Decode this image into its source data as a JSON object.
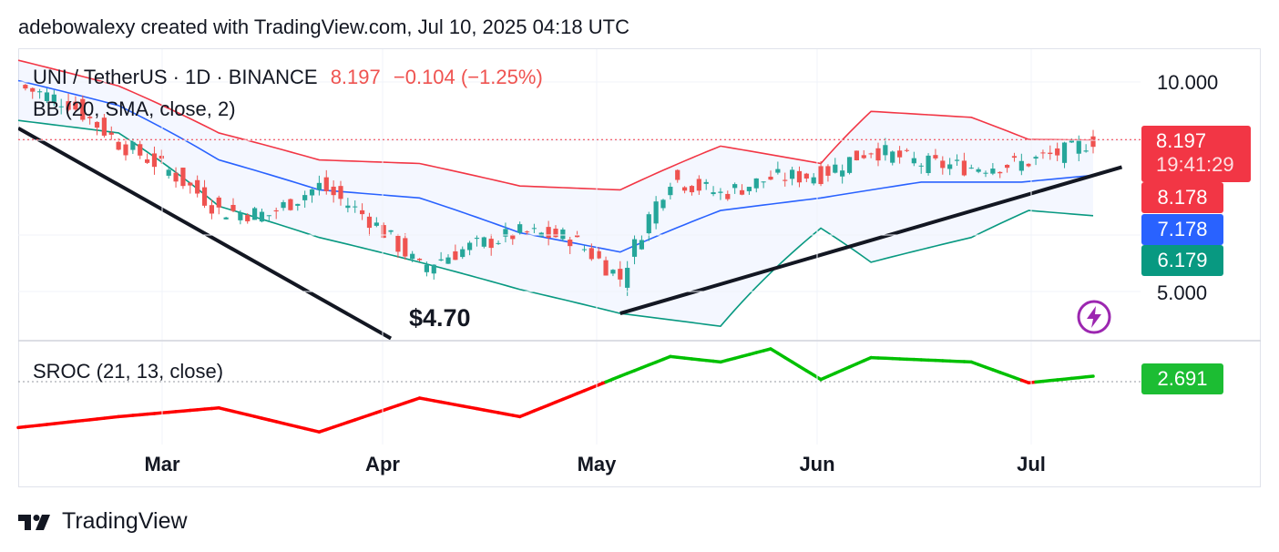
{
  "header": {
    "caption": "adebowalexy created with TradingView.com, Jul 10, 2025 04:18 UTC"
  },
  "legend": {
    "symbol": "UNI / TetherUS · 1D · BINANCE",
    "last": "8.197",
    "change": "−0.104 (−1.25%)",
    "bb_label": "BB (20, SMA, close, 2)",
    "sroc_label": "SROC (21, 13, close)"
  },
  "price_axis": {
    "ticks": [
      {
        "label": "10.000",
        "value": 10.0
      },
      {
        "label": "5.000",
        "value": 5.0
      }
    ]
  },
  "badges": {
    "last_price": "8.197",
    "countdown": "19:41:29",
    "bb_upper": "8.178",
    "bb_basis": "7.178",
    "bb_lower": "6.179",
    "sroc": "2.691"
  },
  "annotation": {
    "low_price": "$4.70"
  },
  "months": [
    "Mar",
    "Apr",
    "May",
    "Jun",
    "Jul"
  ],
  "footer": {
    "brand": "TradingView"
  },
  "colors": {
    "up": "#26a69a",
    "down": "#ef5350",
    "basis": "#2962ff",
    "upper": "#f23645",
    "lower": "#089981",
    "sroc_up": "#00c000",
    "sroc_down": "#ff0000",
    "badge_red": "#f23645",
    "badge_blue": "#2962ff",
    "badge_green": "#089981",
    "badge_sroc": "#1cbd33"
  },
  "chart_data": {
    "type": "line",
    "instrument": "UNI / TetherUS",
    "interval": "1D",
    "exchange": "BINANCE",
    "x_range": [
      "2025-02-10",
      "2025-07-10"
    ],
    "y_scale": "log",
    "ylim": [
      3.9,
      11.5
    ],
    "price_close": [
      [
        "2025-02-10",
        10.0
      ],
      [
        "2025-02-17",
        9.4
      ],
      [
        "2025-02-24",
        8.1
      ],
      [
        "2025-03-03",
        7.3
      ],
      [
        "2025-03-10",
        6.3
      ],
      [
        "2025-03-17",
        6.2
      ],
      [
        "2025-03-24",
        6.9
      ],
      [
        "2025-03-31",
        6.1
      ],
      [
        "2025-04-07",
        5.1
      ],
      [
        "2025-04-14",
        5.5
      ],
      [
        "2025-04-21",
        5.8
      ],
      [
        "2025-04-28",
        5.7
      ],
      [
        "2025-05-05",
        4.9
      ],
      [
        "2025-05-12",
        7.1
      ],
      [
        "2025-05-19",
        6.7
      ],
      [
        "2025-05-26",
        7.1
      ],
      [
        "2025-06-02",
        7.2
      ],
      [
        "2025-06-09",
        7.9
      ],
      [
        "2025-06-16",
        7.5
      ],
      [
        "2025-06-23",
        7.4
      ],
      [
        "2025-06-30",
        7.5
      ],
      [
        "2025-07-07",
        7.9
      ],
      [
        "2025-07-10",
        8.197
      ]
    ],
    "period_low": {
      "date": "2025-04-09",
      "value": 4.7
    },
    "bb_upper": [
      [
        "2025-02-10",
        11.0
      ],
      [
        "2025-02-24",
        10.0
      ],
      [
        "2025-03-10",
        8.4
      ],
      [
        "2025-03-24",
        7.6
      ],
      [
        "2025-04-07",
        7.5
      ],
      [
        "2025-04-21",
        6.9
      ],
      [
        "2025-05-05",
        6.8
      ],
      [
        "2025-05-19",
        8.0
      ],
      [
        "2025-06-02",
        7.5
      ],
      [
        "2025-06-09",
        9.1
      ],
      [
        "2025-06-23",
        8.9
      ],
      [
        "2025-07-01",
        8.2
      ],
      [
        "2025-07-10",
        8.178
      ]
    ],
    "bb_basis": [
      [
        "2025-02-10",
        10.2
      ],
      [
        "2025-02-24",
        9.3
      ],
      [
        "2025-03-10",
        7.6
      ],
      [
        "2025-03-24",
        6.8
      ],
      [
        "2025-04-07",
        6.6
      ],
      [
        "2025-04-21",
        5.8
      ],
      [
        "2025-05-05",
        5.4
      ],
      [
        "2025-05-19",
        6.3
      ],
      [
        "2025-06-02",
        6.6
      ],
      [
        "2025-06-16",
        7.0
      ],
      [
        "2025-06-30",
        7.0
      ],
      [
        "2025-07-10",
        7.178
      ]
    ],
    "bb_lower": [
      [
        "2025-02-10",
        8.8
      ],
      [
        "2025-02-24",
        8.4
      ],
      [
        "2025-03-10",
        6.4
      ],
      [
        "2025-03-24",
        5.7
      ],
      [
        "2025-04-07",
        5.2
      ],
      [
        "2025-04-21",
        4.7
      ],
      [
        "2025-05-05",
        4.3
      ],
      [
        "2025-05-19",
        4.1
      ],
      [
        "2025-06-02",
        5.9
      ],
      [
        "2025-06-09",
        5.2
      ],
      [
        "2025-06-23",
        5.7
      ],
      [
        "2025-07-01",
        6.3
      ],
      [
        "2025-07-10",
        6.179
      ]
    ],
    "sroc": {
      "label": "SROC (21, 13, close)",
      "last": 2.691,
      "y_relative_to_zero": [
        [
          "2025-02-10",
          -4.2
        ],
        [
          "2025-02-24",
          -3.2
        ],
        [
          "2025-03-10",
          -2.4
        ],
        [
          "2025-03-24",
          -4.6
        ],
        [
          "2025-04-07",
          -1.5
        ],
        [
          "2025-04-21",
          -3.2
        ],
        [
          "2025-05-05",
          0.5
        ],
        [
          "2025-05-12",
          2.3
        ],
        [
          "2025-05-19",
          1.8
        ],
        [
          "2025-05-26",
          3.0
        ],
        [
          "2025-06-02",
          0.2
        ],
        [
          "2025-06-09",
          2.2
        ],
        [
          "2025-06-23",
          1.8
        ],
        [
          "2025-07-01",
          -0.1
        ],
        [
          "2025-07-10",
          0.5
        ]
      ]
    }
  }
}
